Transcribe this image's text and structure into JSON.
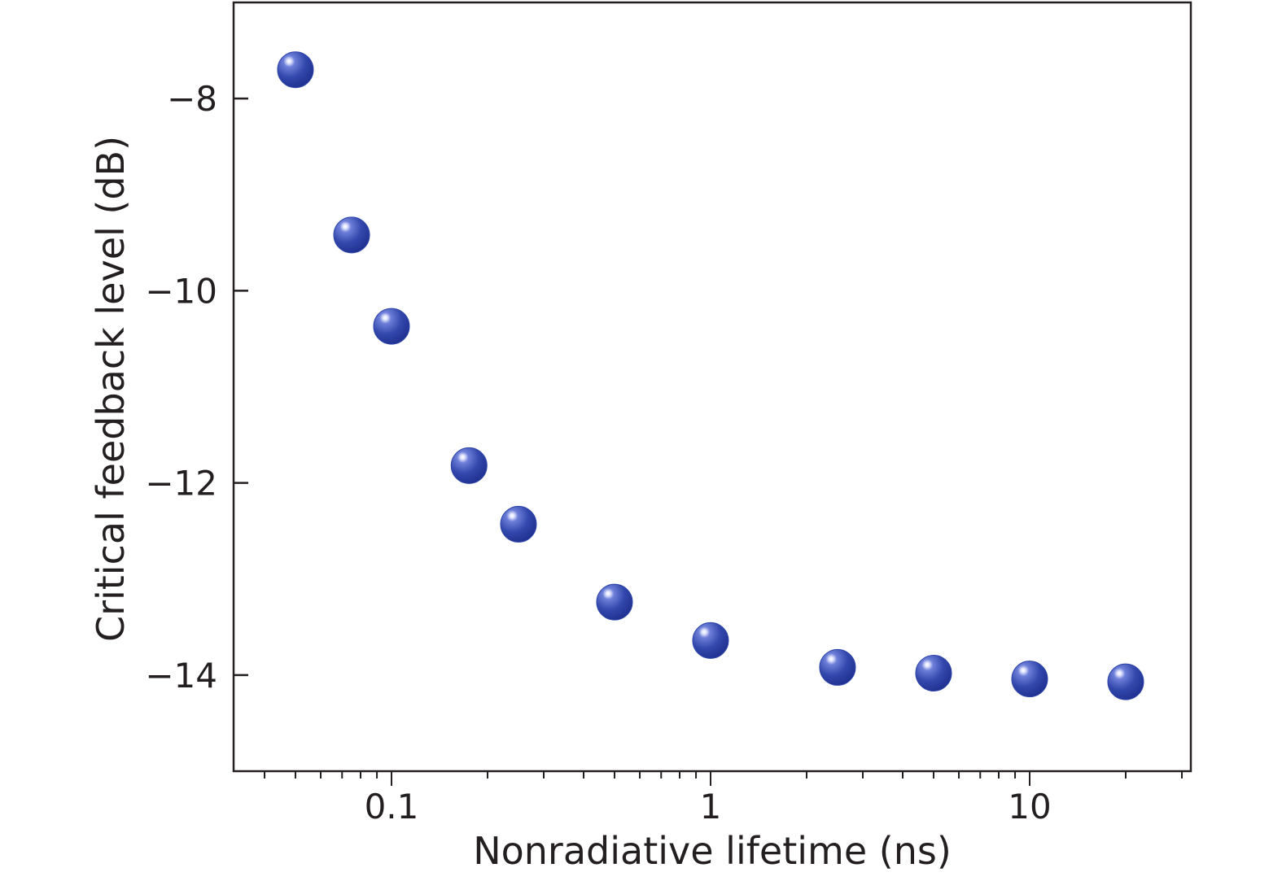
{
  "chart_data": {
    "type": "scatter",
    "title": "",
    "xlabel": "Nonradiative lifetime (ns)",
    "ylabel": "Critical feedback level (dB)",
    "x_scale": "log",
    "xlim": [
      0.032,
      32
    ],
    "ylim": [
      -15,
      -7
    ],
    "x_ticks": [
      {
        "value": 0.1,
        "label": "0.1"
      },
      {
        "value": 1,
        "label": "1"
      },
      {
        "value": 10,
        "label": "10"
      }
    ],
    "y_ticks": [
      {
        "value": -8,
        "label": "−8"
      },
      {
        "value": -10,
        "label": "−10"
      },
      {
        "value": -12,
        "label": "−12"
      },
      {
        "value": -14,
        "label": "−14"
      }
    ],
    "grid": false,
    "legend": "none",
    "marker_color": "#2e45a8",
    "series": [
      {
        "x": [
          0.05,
          0.075,
          0.1,
          0.175,
          0.25,
          0.5,
          1,
          2.5,
          5,
          10,
          20
        ],
        "y": [
          -7.7,
          -9.42,
          -10.37,
          -11.82,
          -12.43,
          -13.24,
          -13.64,
          -13.92,
          -13.98,
          -14.04,
          -14.07
        ]
      }
    ]
  }
}
